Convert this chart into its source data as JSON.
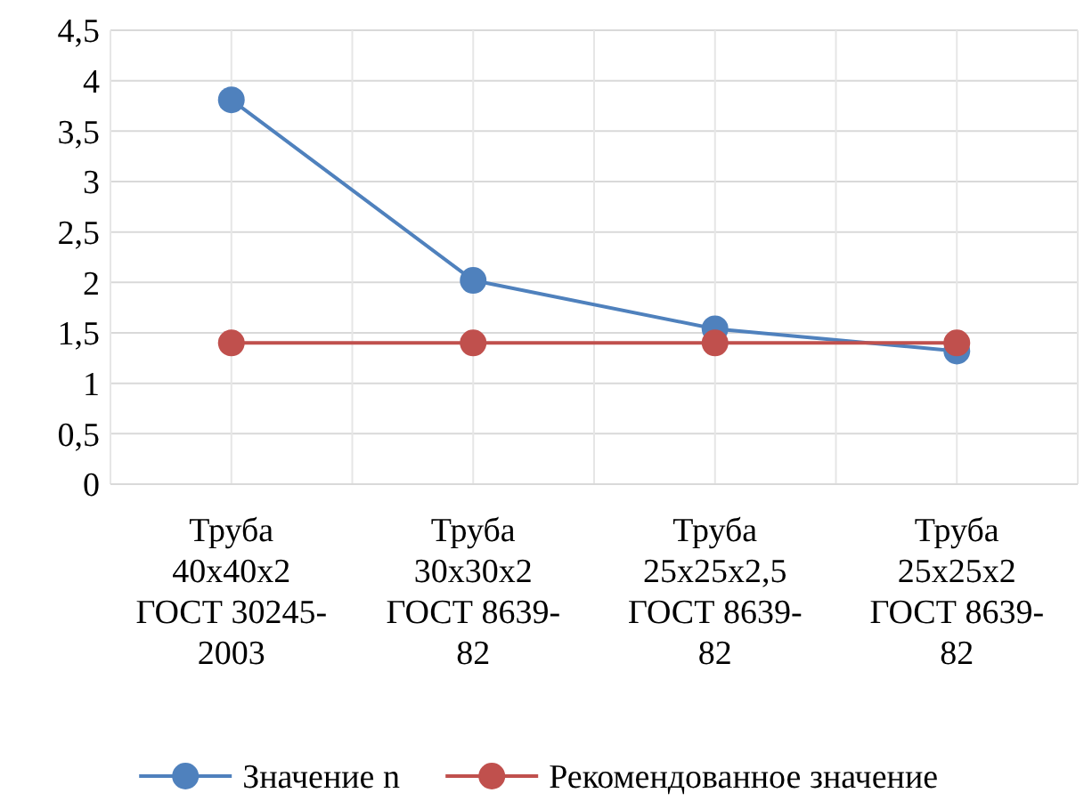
{
  "chart_data": {
    "type": "line",
    "categories": [
      "Труба 40x40x2 ГОСТ 30245-2003",
      "Труба 30x30x2 ГОСТ 8639-82",
      "Труба 25x25x2,5 ГОСТ 8639-82",
      "Труба 25x25x2 ГОСТ 8639-82"
    ],
    "series": [
      {
        "name": "Значение n",
        "color": "#4f81bd",
        "values": [
          3.81,
          2.02,
          1.54,
          1.32
        ]
      },
      {
        "name": "Рекомендованное значение",
        "color": "#c0504d",
        "values": [
          1.4,
          1.4,
          1.4,
          1.4
        ]
      }
    ],
    "ylim": [
      0,
      4.5
    ],
    "yticks": [
      0,
      {
        "value": 0.5,
        "label": "0,5"
      },
      1,
      {
        "value": 1.5,
        "label": "1,5"
      },
      2,
      {
        "value": 2.5,
        "label": "2,5"
      },
      3,
      {
        "value": 3.5,
        "label": "3,5"
      },
      4,
      {
        "value": 4.5,
        "label": "4,5"
      }
    ],
    "grid": true,
    "legend": "bottom",
    "marker": "circle",
    "line_style": "solid"
  }
}
